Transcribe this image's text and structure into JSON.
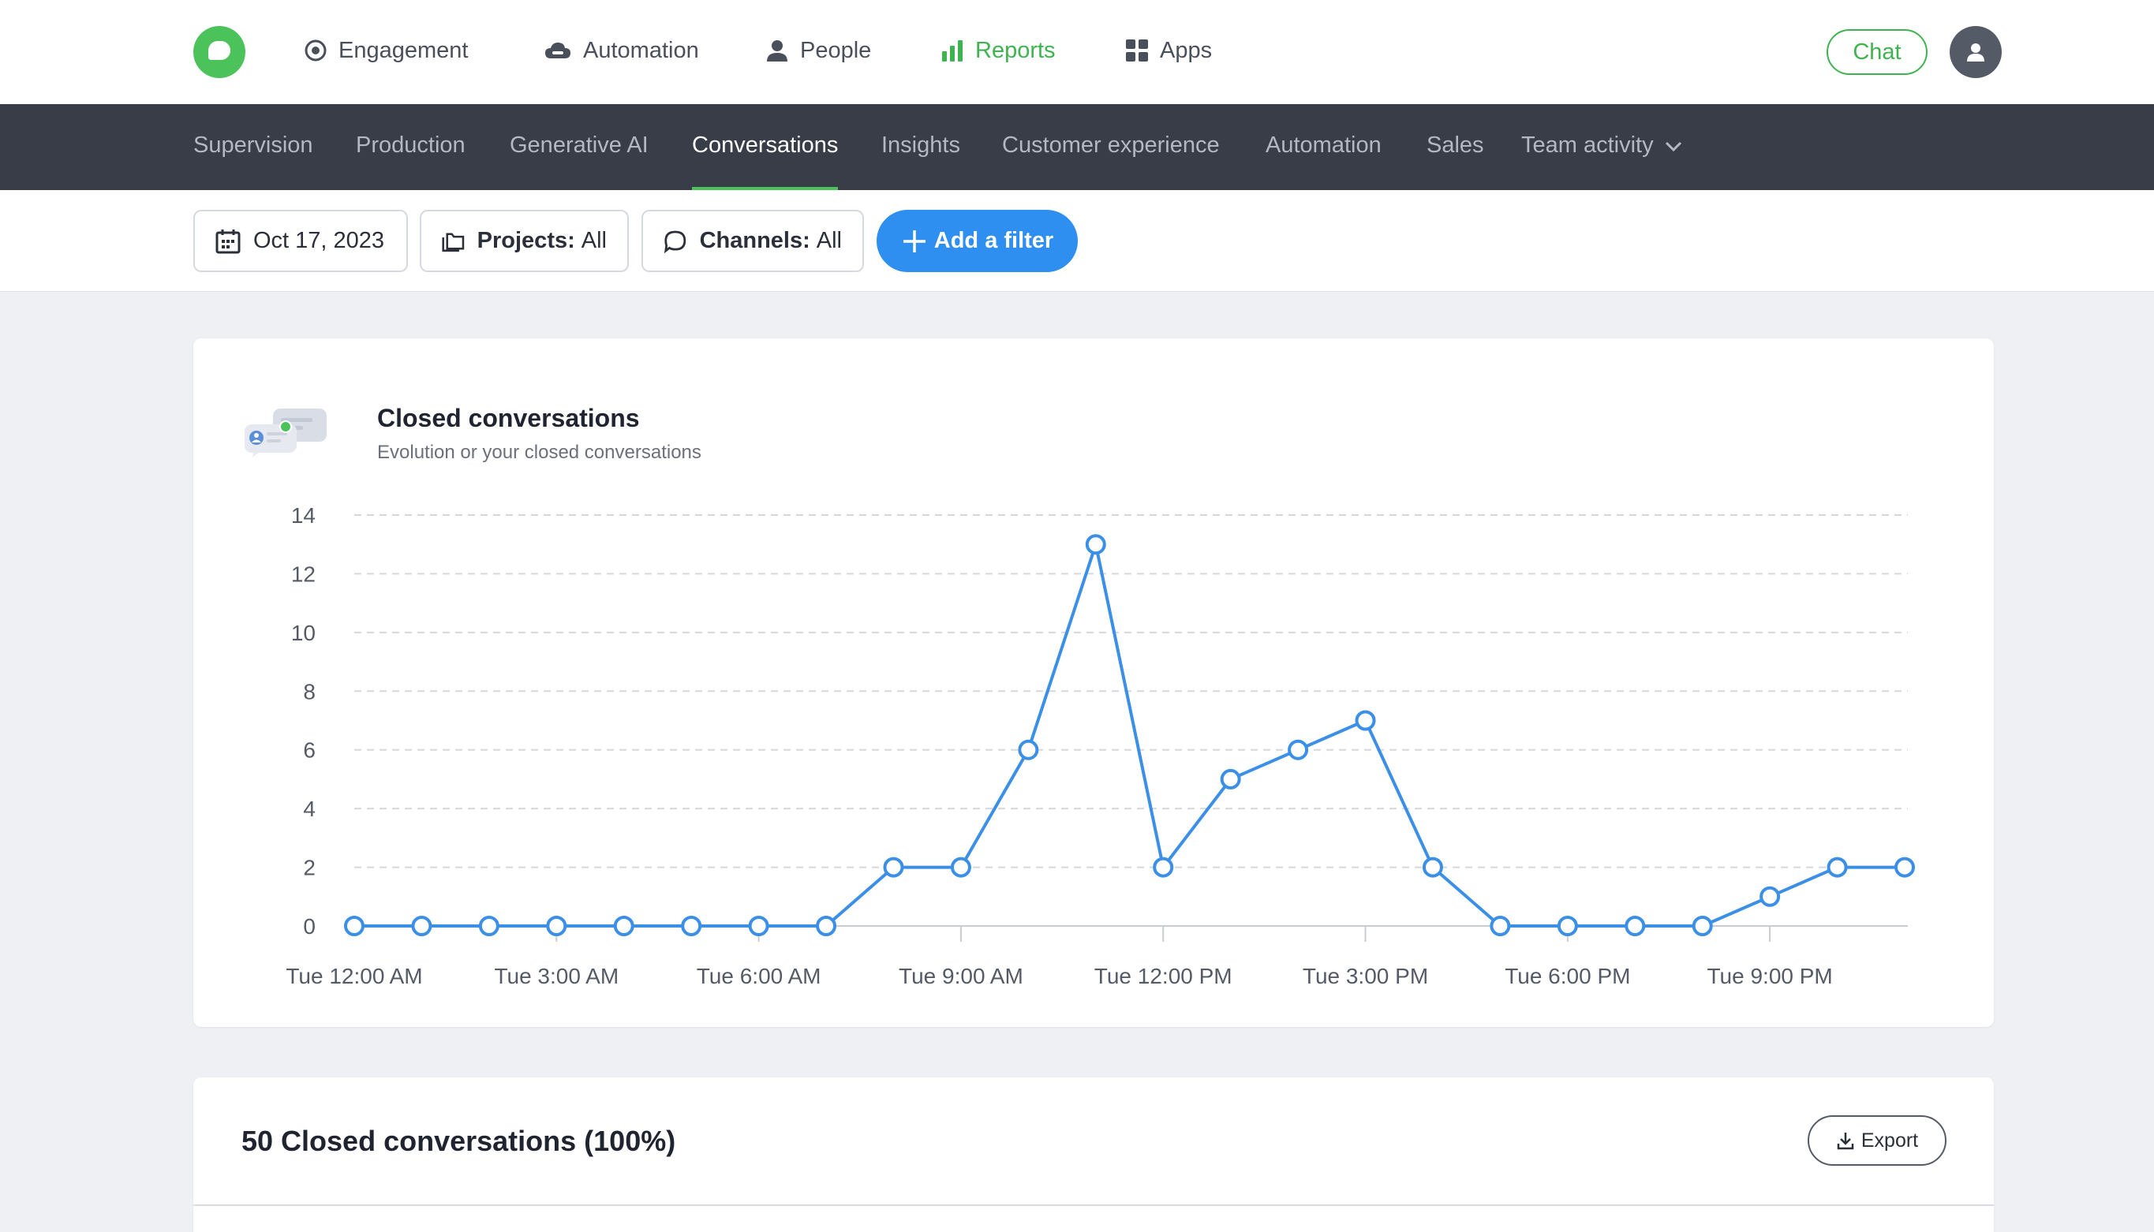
{
  "topnav": {
    "items": [
      {
        "label": "Engagement",
        "icon": "target-icon"
      },
      {
        "label": "Automation",
        "icon": "cloud-icon"
      },
      {
        "label": "People",
        "icon": "person-icon"
      },
      {
        "label": "Reports",
        "icon": "bar-chart-icon",
        "active": true
      },
      {
        "label": "Apps",
        "icon": "grid-icon"
      }
    ],
    "chat_label": "Chat",
    "accent_color": "#3fb34f"
  },
  "subnav": {
    "items": [
      {
        "label": "Supervision"
      },
      {
        "label": "Production"
      },
      {
        "label": "Generative AI"
      },
      {
        "label": "Conversations",
        "active": true
      },
      {
        "label": "Insights"
      },
      {
        "label": "Customer experience"
      },
      {
        "label": "Automation"
      },
      {
        "label": "Sales"
      },
      {
        "label": "Team activity"
      }
    ]
  },
  "filters": {
    "date": "Oct 17, 2023",
    "projects_key": "Projects:",
    "projects_value": "All",
    "channels_key": "Channels:",
    "channels_value": "All",
    "add_filter": "Add a filter",
    "add_color": "#2f8ff0"
  },
  "chart_card": {
    "title": "Closed conversations",
    "subtitle": "Evolution or your closed conversations"
  },
  "chart_data": {
    "type": "line",
    "x": [
      "Tue 12:00 AM",
      "Tue 1:00 AM",
      "Tue 2:00 AM",
      "Tue 3:00 AM",
      "Tue 4:00 AM",
      "Tue 5:00 AM",
      "Tue 6:00 AM",
      "Tue 7:00 AM",
      "Tue 8:00 AM",
      "Tue 9:00 AM",
      "Tue 10:00 AM",
      "Tue 11:00 AM",
      "Tue 12:00 PM",
      "Tue 1:00 PM",
      "Tue 2:00 PM",
      "Tue 3:00 PM",
      "Tue 4:00 PM",
      "Tue 5:00 PM",
      "Tue 6:00 PM",
      "Tue 7:00 PM",
      "Tue 8:00 PM",
      "Tue 9:00 PM",
      "Tue 10:00 PM",
      "Tue 11:00 PM"
    ],
    "x_tick_labels": [
      "Tue 12:00 AM",
      "Tue 3:00 AM",
      "Tue 6:00 AM",
      "Tue 9:00 AM",
      "Tue 12:00 PM",
      "Tue 3:00 PM",
      "Tue 6:00 PM",
      "Tue 9:00 PM"
    ],
    "series": [
      {
        "values": [
          0,
          0,
          0,
          0,
          0,
          0,
          0,
          0,
          2,
          2,
          6,
          13,
          2,
          5,
          6,
          7,
          2,
          0,
          0,
          0,
          0,
          1,
          2,
          2
        ],
        "color": "#3b8fe6"
      }
    ],
    "ylim": [
      0,
      14
    ],
    "y_ticks": [
      0,
      2,
      4,
      6,
      8,
      10,
      12,
      14
    ],
    "grid": true,
    "legend": "none"
  },
  "table_card": {
    "title": "50 Closed conversations (100%)",
    "export_label": "Export"
  }
}
